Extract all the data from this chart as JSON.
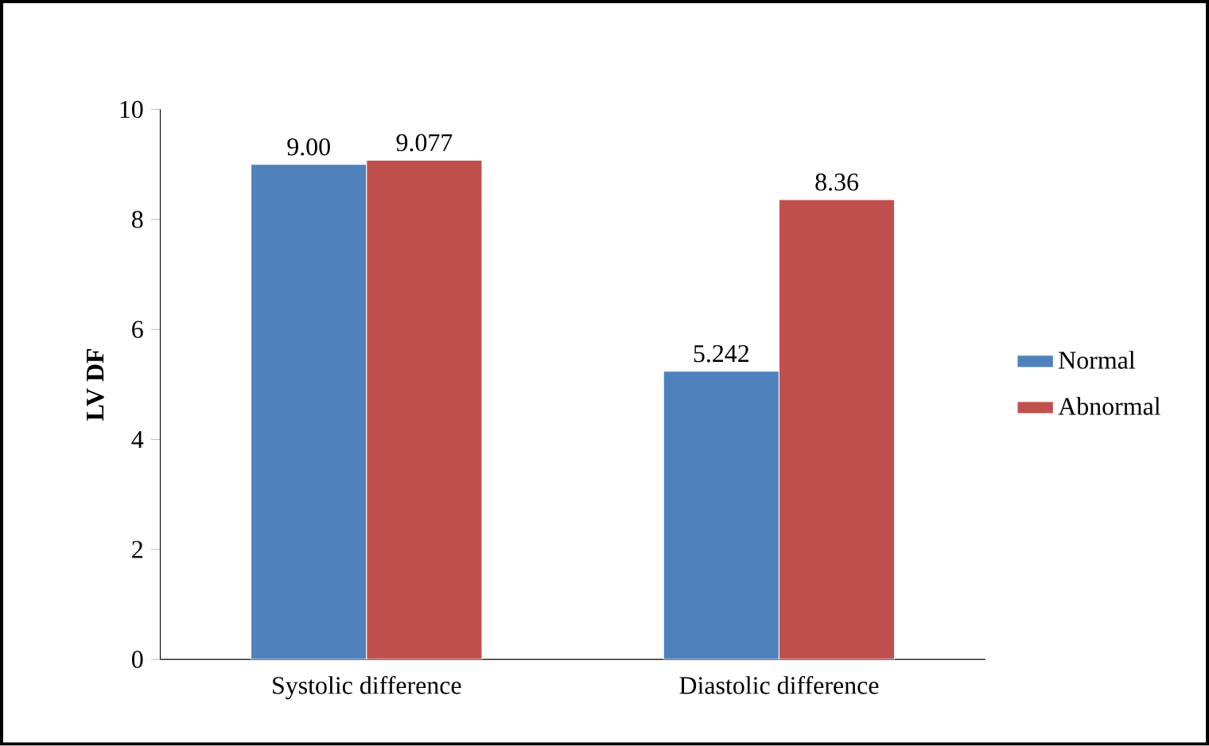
{
  "chart_data": {
    "type": "bar",
    "ylabel": "LV DF",
    "categories": [
      "Systolic difference",
      "Diastolic difference"
    ],
    "series": [
      {
        "name": "Normal",
        "color": "#4f81bd",
        "values": [
          9.0,
          5.242
        ],
        "value_labels": [
          "9.00",
          "5.242"
        ]
      },
      {
        "name": "Abnormal",
        "color": "#c0504d",
        "values": [
          9.077,
          8.36
        ],
        "value_labels": [
          "9.077",
          "8.36"
        ]
      }
    ],
    "ylim": [
      0,
      10
    ],
    "yticks": [
      0,
      2,
      4,
      6,
      8,
      10
    ],
    "grid": false,
    "legend": "right"
  }
}
